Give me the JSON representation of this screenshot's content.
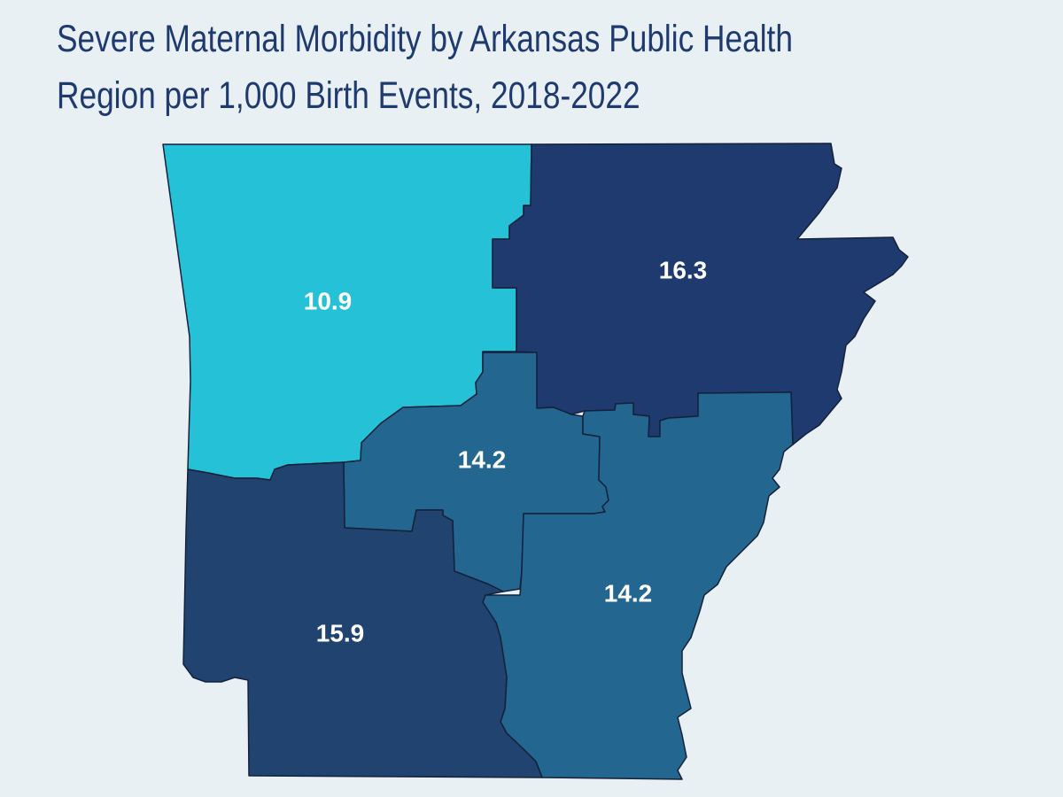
{
  "title": {
    "line1": "Severe Maternal Morbidity by Arkansas Public Health",
    "line2": "Region per 1,000 Birth Events, 2018-2022"
  },
  "colors": {
    "background": "#e8f0f3",
    "title": "#1f3a6e",
    "low": "#24c1d7",
    "mid": "#236690",
    "high": "#1f3a6e"
  },
  "regions": [
    {
      "id": "northwest",
      "value": "10.9",
      "color": "#24c1d7"
    },
    {
      "id": "northeast",
      "value": "16.3",
      "color": "#1f3a6e"
    },
    {
      "id": "central",
      "value": "14.2",
      "color": "#236690"
    },
    {
      "id": "southeast",
      "value": "14.2",
      "color": "#236690"
    },
    {
      "id": "southwest",
      "value": "15.9",
      "color": "#20436f"
    }
  ]
}
